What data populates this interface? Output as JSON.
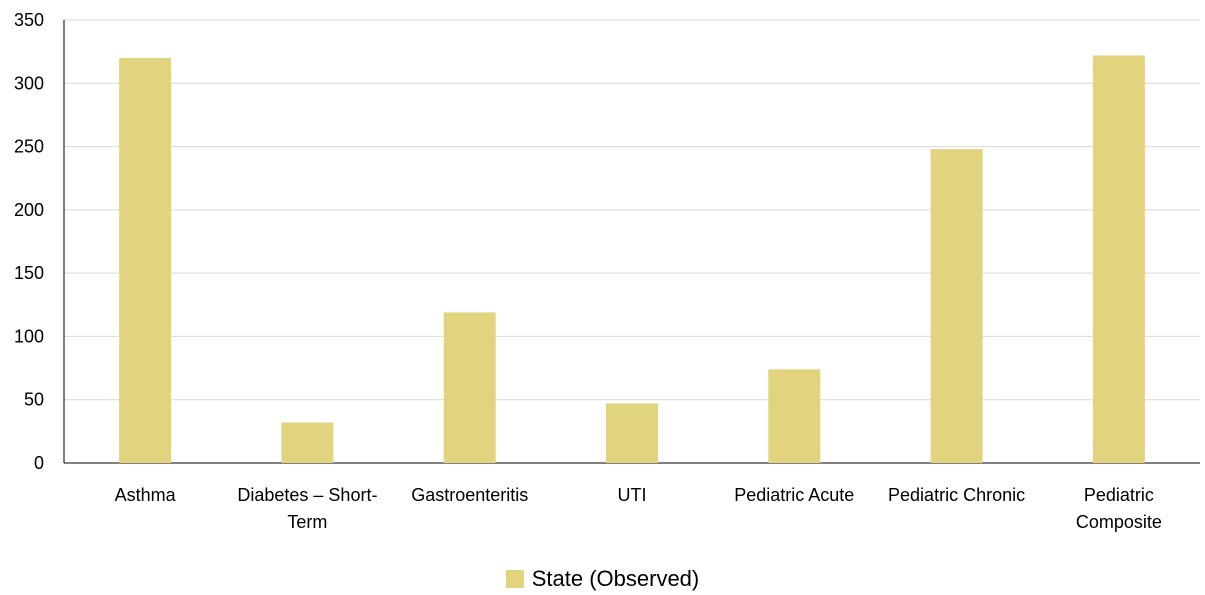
{
  "chart_data": {
    "type": "bar",
    "categories": [
      [
        "Asthma"
      ],
      [
        "Diabetes – Short-",
        "Term"
      ],
      [
        "Gastroenteritis"
      ],
      [
        "UTI"
      ],
      [
        "Pediatric Acute"
      ],
      [
        "Pediatric Chronic"
      ],
      [
        "Pediatric",
        "Composite"
      ]
    ],
    "series": [
      {
        "name": "State (Observed)",
        "color": "#e2d47f",
        "values": [
          320,
          32,
          119,
          47,
          74,
          248,
          322
        ]
      }
    ],
    "ylim": [
      0,
      350
    ],
    "yticks": [
      "0",
      "50",
      "100",
      "150",
      "200",
      "250",
      "300",
      "350"
    ],
    "grid": true,
    "legend_position": "bottom",
    "title": "",
    "xlabel": "",
    "ylabel": ""
  }
}
